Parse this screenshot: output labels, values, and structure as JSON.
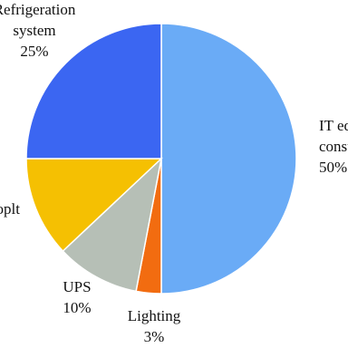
{
  "chart_data": {
    "type": "pie",
    "categories": [
      [
        "IT equipment",
        "consumption"
      ],
      [
        "Lighting"
      ],
      [
        "UPS"
      ],
      [
        "oplt"
      ],
      [
        "Refrigeration",
        "system"
      ]
    ],
    "values": [
      50,
      3,
      10,
      12,
      25
    ],
    "value_labels": [
      "50%",
      "3%",
      "10%",
      null,
      "25%"
    ],
    "colors": [
      "#6aabf6",
      "#f26c10",
      "#b6bfb6",
      "#f5c002",
      "#3b66f2"
    ]
  }
}
